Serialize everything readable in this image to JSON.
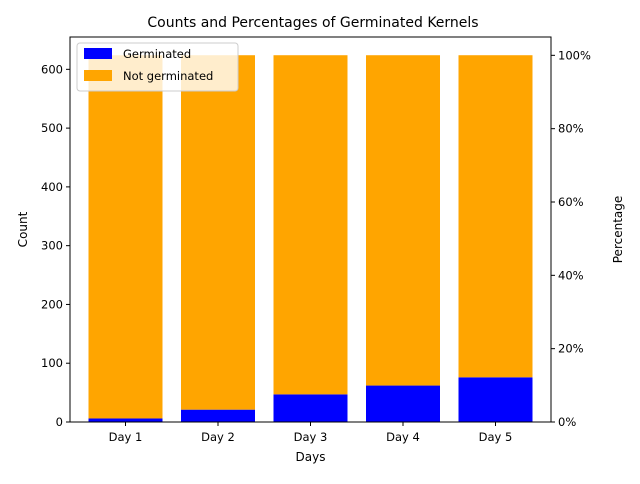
{
  "chart_data": {
    "type": "bar",
    "stacked": true,
    "title": "Counts and Percentages of Germinated Kernels",
    "xlabel": "Days",
    "ylabel": "Count",
    "y2label": "Percentage",
    "categories": [
      "Day 1",
      "Day 2",
      "Day 3",
      "Day 4",
      "Day 5"
    ],
    "series": [
      {
        "name": "Germinated",
        "color": "#0000ff",
        "values": [
          6,
          21,
          47,
          62,
          76
        ]
      },
      {
        "name": "Not germinated",
        "color": "#ffa500",
        "values": [
          618,
          603,
          577,
          562,
          548
        ]
      }
    ],
    "ylim": [
      0,
      655
    ],
    "yticks": [
      0,
      100,
      200,
      300,
      400,
      500,
      600
    ],
    "y2lim": [
      0,
      105
    ],
    "y2ticks": [
      0,
      20,
      40,
      60,
      80,
      100
    ],
    "y2tick_labels": [
      "0%",
      "20%",
      "40%",
      "60%",
      "80%",
      "100%"
    ],
    "legend_position": "upper-left",
    "grid": false
  }
}
